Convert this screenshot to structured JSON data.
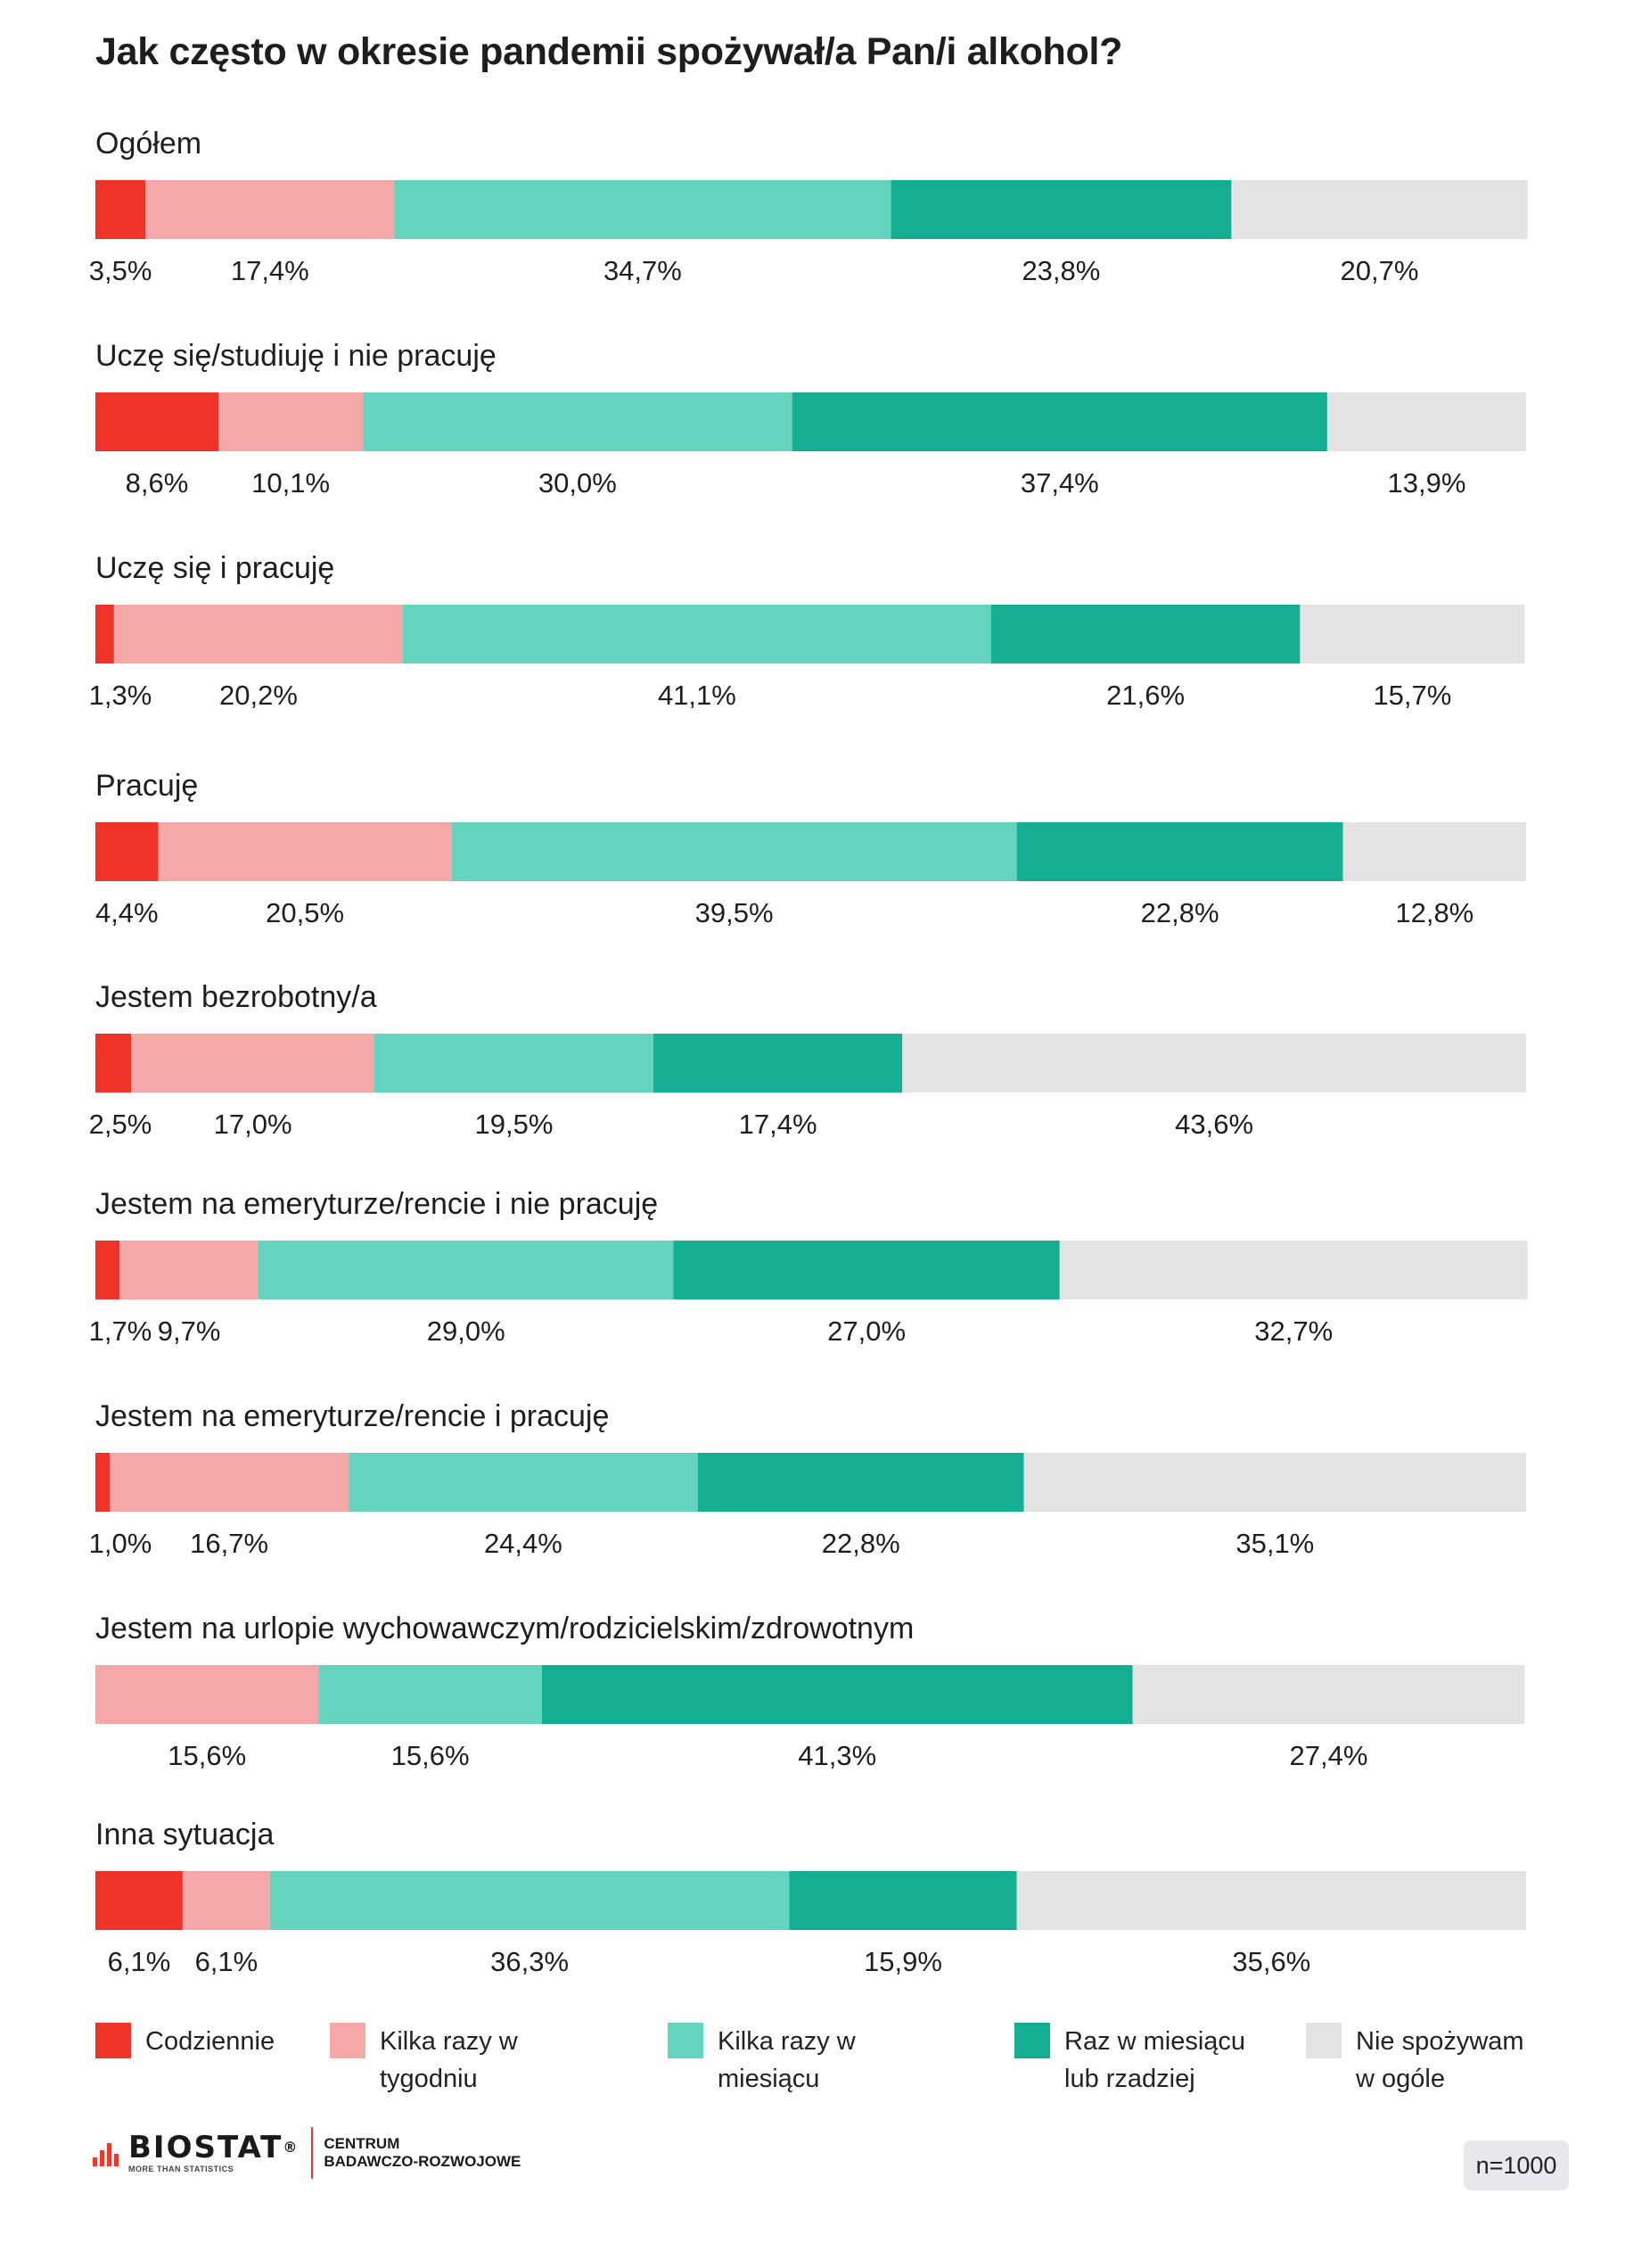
{
  "chart_data": {
    "type": "bar",
    "orientation": "horizontal",
    "stacked": true,
    "title": "Jak często w okresie pandemii spożywał/a Pan/i alkohol?",
    "categories": [
      "Ogółem",
      "Uczę się/studiuję i nie pracuję",
      "Uczę się i pracuję",
      "Pracuję",
      "Jestem bezrobotny/a",
      "Jestem na emeryturze/rencie i nie pracuję",
      "Jestem na emeryturze/rencie i pracuję",
      "Jestem na urlopie wychowawczym/rodzicielskim/zdrowotnym",
      "Inna sytuacja"
    ],
    "series": [
      {
        "name": "Codziennie",
        "color": "#ef3329",
        "values": [
          3.5,
          8.6,
          1.3,
          4.4,
          2.5,
          1.7,
          1.0,
          0,
          6.1
        ]
      },
      {
        "name": "Kilka razy w tygodniu",
        "color": "#f6a7a7",
        "values": [
          17.4,
          10.1,
          20.2,
          20.5,
          17.0,
          9.7,
          16.7,
          15.6,
          6.1
        ]
      },
      {
        "name": "Kilka razy w miesiącu",
        "color": "#65d4bf",
        "values": [
          34.7,
          30.0,
          41.1,
          39.5,
          19.5,
          29.0,
          24.4,
          15.6,
          36.3
        ]
      },
      {
        "name": "Raz w miesiącu lub rzadziej",
        "color": "#14ae93",
        "values": [
          23.8,
          37.4,
          21.6,
          22.8,
          17.4,
          27.0,
          22.8,
          41.3,
          15.9
        ]
      },
      {
        "name": "Nie spożywam w ogóle",
        "color": "#e3e3e3",
        "values": [
          20.7,
          13.9,
          15.7,
          12.8,
          43.6,
          32.7,
          35.1,
          27.4,
          35.6
        ]
      }
    ],
    "value_labels": [
      [
        "3,5%",
        "17,4%",
        "34,7%",
        "23,8%",
        "20,7%"
      ],
      [
        "8,6%",
        "10,1%",
        "30,0%",
        "37,4%",
        "13,9%"
      ],
      [
        "1,3%",
        "20,2%",
        "41,1%",
        "21,6%",
        "15,7%"
      ],
      [
        "4,4%",
        "20,5%",
        "39,5%",
        "22,8%",
        "12,8%"
      ],
      [
        "2,5%",
        "17,0%",
        "19,5%",
        "17,4%",
        "43,6%"
      ],
      [
        "1,7%",
        "9,7%",
        "29,0%",
        "27,0%",
        "32,7%"
      ],
      [
        "1,0%",
        "16,7%",
        "24,4%",
        "22,8%",
        "35,1%"
      ],
      [
        "",
        "15,6%",
        "15,6%",
        "41,3%",
        "27,4%"
      ],
      [
        "6,1%",
        "6,1%",
        "36,3%",
        "15,9%",
        "35,6%"
      ]
    ],
    "xlim": [
      0,
      100
    ],
    "grid": false,
    "legend_position": "bottom"
  },
  "legend": [
    {
      "label_lines": [
        "Codziennie"
      ]
    },
    {
      "label_lines": [
        "Kilka razy w tygodniu"
      ]
    },
    {
      "label_lines": [
        "Kilka razy w miesiącu"
      ]
    },
    {
      "label_lines": [
        "Raz w miesiącu",
        "lub rzadziej"
      ]
    },
    {
      "label_lines": [
        "Nie spożywam",
        "w ogóle"
      ]
    }
  ],
  "footer": {
    "logo_name": "BIOSTAT",
    "logo_registered": "®",
    "logo_tagline": "MORE THAN STATISTICS",
    "department_line1": "CENTRUM",
    "department_line2": "BADAWCZO-ROZWOJOWE",
    "sample_size": "n=1000"
  }
}
